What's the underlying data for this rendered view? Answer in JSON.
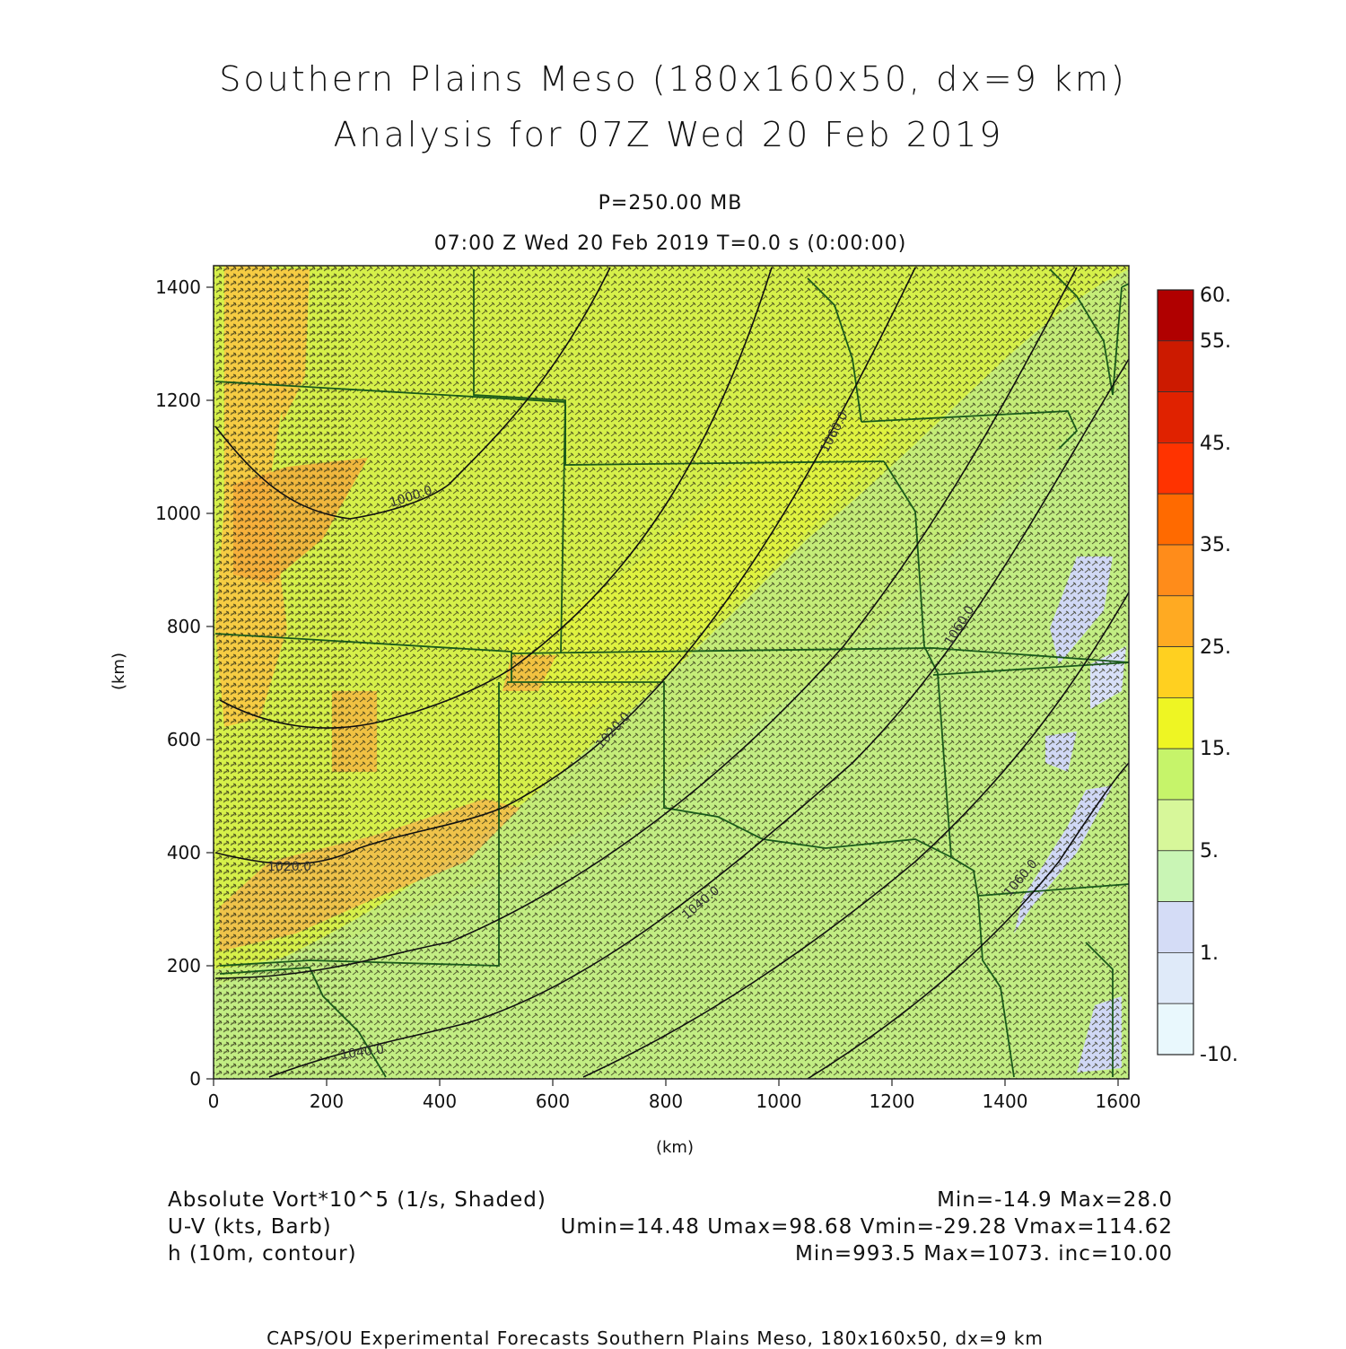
{
  "header": {
    "title_line1": "Southern Plains Meso (180x160x50, dx=9 km)",
    "title_line2": "Analysis for 07Z Wed 20 Feb 2019",
    "pressure_level": "P=250.00 MB",
    "valid_time": "07:00 Z Wed 20 Feb 2019    T=0.0 s (0:00:00)"
  },
  "axes": {
    "x_label": "(km)",
    "y_label": "(km)",
    "x_ticks": [
      "0",
      "200",
      "400",
      "600",
      "800",
      "1000",
      "1200",
      "1400",
      "1600"
    ],
    "y_ticks": [
      "0",
      "200",
      "400",
      "600",
      "800",
      "1000",
      "1200",
      "1400"
    ],
    "x_range": [
      0,
      1620
    ],
    "y_range": [
      0,
      1440
    ]
  },
  "contours": {
    "labels": [
      "1000.0",
      "1020.0",
      "1020.0",
      "1040.0",
      "1040.0",
      "1060.0",
      "1060.0",
      "1060.0"
    ]
  },
  "colorbar": {
    "labels": [
      "60.",
      "55.",
      "45.",
      "35.",
      "25.",
      "15.",
      "5.",
      "1.",
      "-10."
    ],
    "colors": [
      "#b00000",
      "#cc1a00",
      "#e02200",
      "#ff3300",
      "#ff6a00",
      "#ff8c1a",
      "#ffaa22",
      "#ffd020",
      "#eef523",
      "#c6f46a",
      "#d7f79a",
      "#c9f5b5",
      "#d4dcf6",
      "#dfeaf9",
      "#e9f8fd"
    ]
  },
  "footer": {
    "left_1": "Absolute Vort*10^5 (1/s, Shaded)",
    "left_2": "U-V (kts, Barb)",
    "left_3": "h (10m, contour)",
    "right_1": "Min=-14.9 Max=28.0",
    "right_2": "Umin=14.48 Umax=98.68 Vmin=-29.28 Vmax=114.62",
    "right_3": "Min=993.5 Max=1073. inc=10.00",
    "credit": "CAPS/OU Experimental Forecasts  Southern Plains Meso, 180x160x50, dx=9 km"
  }
}
